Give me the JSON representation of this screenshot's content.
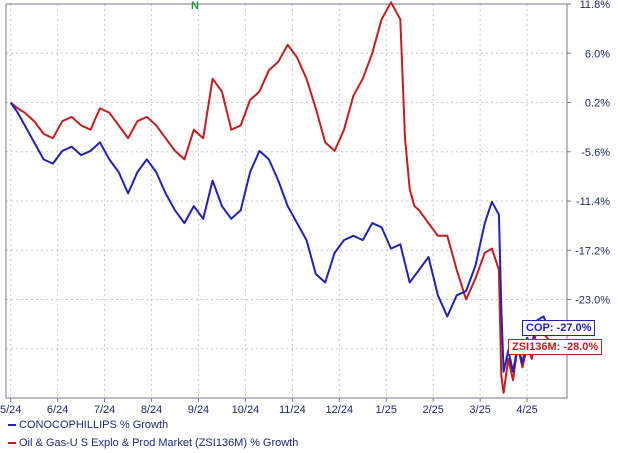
{
  "marker": {
    "text": "N",
    "color": "#1a9c3c"
  },
  "legend": [
    {
      "text": "CONOCOPHILLIPS % Growth",
      "color": "#2222bb"
    },
    {
      "text": "Oil & Gas-U S Explo & Prod Market (ZSI136M) % Growth",
      "color": "#c41e1e"
    }
  ],
  "end_labels": {
    "cop": "COP: -27.0%",
    "zsi": "ZSI136M: -28.0%"
  },
  "chart_data": {
    "type": "line",
    "title": "",
    "xlabel": "",
    "ylabel": "",
    "ylim": [
      -34.6,
      11.8
    ],
    "y_ticks": [
      "11.8%",
      "6.0%",
      "0.2%",
      "-5.6%",
      "-11.4%",
      "-17.2%",
      "-23.0%"
    ],
    "y_tick_values": [
      11.8,
      6.0,
      0.2,
      -5.6,
      -11.4,
      -17.2,
      -23.0
    ],
    "y_grid_extra": [
      -28.8
    ],
    "x_ticks": [
      "5/24",
      "6/24",
      "7/24",
      "8/24",
      "9/24",
      "10/24",
      "11/24",
      "12/24",
      "1/25",
      "2/25",
      "3/25",
      "4/25"
    ],
    "xlim": [
      -0.1,
      11.85
    ],
    "grid": true,
    "series": [
      {
        "name": "CONOCOPHILLIPS % Growth",
        "color": "#2222bb",
        "x": [
          0.0,
          0.15,
          0.3,
          0.5,
          0.7,
          0.9,
          1.1,
          1.3,
          1.5,
          1.7,
          1.9,
          2.1,
          2.3,
          2.5,
          2.7,
          2.9,
          3.1,
          3.3,
          3.5,
          3.7,
          3.9,
          4.1,
          4.3,
          4.5,
          4.7,
          4.9,
          5.1,
          5.3,
          5.5,
          5.7,
          5.9,
          6.1,
          6.3,
          6.5,
          6.7,
          6.9,
          7.1,
          7.3,
          7.5,
          7.7,
          7.9,
          8.1,
          8.3,
          8.5,
          8.7,
          8.9,
          9.1,
          9.3,
          9.5,
          9.7,
          9.9,
          10.1,
          10.25,
          10.4,
          10.45,
          10.5,
          10.6,
          10.7,
          10.8,
          10.9,
          11.0,
          11.1,
          11.2,
          11.35,
          11.5
        ],
        "values": [
          0.2,
          -1.0,
          -2.5,
          -4.5,
          -6.5,
          -7.0,
          -5.5,
          -5.0,
          -6.0,
          -5.5,
          -4.5,
          -6.5,
          -8.0,
          -10.5,
          -8.0,
          -6.5,
          -8.0,
          -10.5,
          -12.5,
          -14.0,
          -12.0,
          -13.5,
          -9.0,
          -12.0,
          -13.5,
          -12.5,
          -8.0,
          -5.5,
          -6.5,
          -9.0,
          -12.0,
          -14.0,
          -16.0,
          -20.0,
          -21.0,
          -17.5,
          -16.0,
          -15.5,
          -16.0,
          -14.0,
          -14.5,
          -17.0,
          -16.5,
          -21.0,
          -19.5,
          -18.0,
          -22.5,
          -25.0,
          -22.5,
          -22.0,
          -19.0,
          -14.0,
          -11.5,
          -13.0,
          -24.0,
          -31.5,
          -29.0,
          -31.5,
          -28.5,
          -30.5,
          -27.5,
          -28.5,
          -25.5,
          -25.0,
          -27.0
        ]
      },
      {
        "name": "Oil & Gas-U S Explo & Prod Market (ZSI136M) % Growth",
        "color": "#c41e1e",
        "x": [
          0.0,
          0.15,
          0.3,
          0.5,
          0.7,
          0.9,
          1.1,
          1.3,
          1.5,
          1.7,
          1.9,
          2.1,
          2.3,
          2.5,
          2.7,
          2.9,
          3.1,
          3.3,
          3.5,
          3.7,
          3.9,
          4.1,
          4.3,
          4.5,
          4.7,
          4.9,
          5.1,
          5.3,
          5.5,
          5.7,
          5.9,
          6.1,
          6.3,
          6.5,
          6.7,
          6.9,
          7.1,
          7.3,
          7.5,
          7.7,
          7.9,
          8.1,
          8.3,
          8.4,
          8.5,
          8.6,
          8.7,
          8.9,
          9.1,
          9.3,
          9.5,
          9.7,
          9.9,
          10.1,
          10.25,
          10.4,
          10.45,
          10.5,
          10.6,
          10.7,
          10.8,
          10.9,
          11.0,
          11.1,
          11.2,
          11.35,
          11.5
        ],
        "values": [
          0.2,
          -0.5,
          -1.0,
          -2.0,
          -3.5,
          -4.0,
          -2.0,
          -1.5,
          -2.5,
          -3.0,
          -0.5,
          -1.0,
          -2.5,
          -4.0,
          -2.0,
          -1.5,
          -2.5,
          -4.0,
          -5.5,
          -6.5,
          -3.0,
          -4.0,
          3.0,
          1.5,
          -3.0,
          -2.5,
          0.5,
          1.5,
          4.0,
          5.0,
          7.0,
          5.5,
          3.0,
          -0.5,
          -4.5,
          -5.5,
          -3.0,
          1.0,
          3.0,
          6.0,
          10.0,
          12.0,
          10.0,
          -4.0,
          -10.0,
          -12.0,
          -12.5,
          -14.0,
          -15.5,
          -15.5,
          -19.5,
          -23.0,
          -20.5,
          -17.5,
          -17.0,
          -19.5,
          -32.0,
          -34.0,
          -30.0,
          -32.5,
          -28.5,
          -31.0,
          -28.5,
          -30.0,
          -26.5,
          -27.0,
          -28.0
        ]
      }
    ]
  }
}
